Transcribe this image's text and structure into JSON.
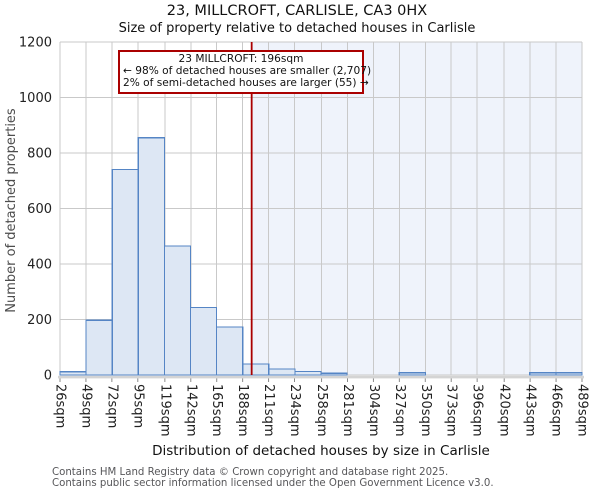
{
  "page": {
    "title": "23, MILLCROFT, CARLISLE, CA3 0HX",
    "subtitle": "Size of property relative to detached houses in Carlisle"
  },
  "annotation": {
    "line1": "23 MILLCROFT: 196sqm",
    "line2": "← 98% of detached houses are smaller (2,707)",
    "line3": "2% of semi-detached houses are larger (55) →"
  },
  "footer": {
    "line1": "Contains HM Land Registry data © Crown copyright and database right 2025.",
    "line2": "Contains public sector information licensed under the Open Government Licence v3.0."
  },
  "chart_data": {
    "type": "bar",
    "title": "23, MILLCROFT, CARLISLE, CA3 0HX",
    "subtitle": "Size of property relative to detached houses in Carlisle",
    "xlabel": "Distribution of detached houses by size in Carlisle",
    "ylabel": "Number of detached properties",
    "ylim": [
      0,
      1200
    ],
    "yticks": [
      0,
      200,
      400,
      600,
      800,
      1000,
      1200
    ],
    "x_tick_labels": [
      "26sqm",
      "49sqm",
      "72sqm",
      "95sqm",
      "119sqm",
      "142sqm",
      "165sqm",
      "188sqm",
      "211sqm",
      "234sqm",
      "258sqm",
      "281sqm",
      "304sqm",
      "327sqm",
      "350sqm",
      "373sqm",
      "396sqm",
      "420sqm",
      "443sqm",
      "466sqm",
      "489sqm"
    ],
    "x_tick_values_sqm": [
      26,
      49,
      72,
      95,
      119,
      142,
      165,
      188,
      211,
      234,
      258,
      281,
      304,
      327,
      350,
      373,
      396,
      420,
      443,
      466,
      489
    ],
    "values": [
      12,
      197,
      740,
      855,
      465,
      243,
      173,
      40,
      22,
      13,
      6,
      0,
      0,
      8,
      0,
      0,
      0,
      0,
      8,
      8
    ],
    "marker_sqm": 196,
    "grid": true,
    "legend": "none",
    "colors": {
      "bar_fill": "#dde7f4",
      "bar_edge": "#5585c5",
      "marker_line": "#aa0000",
      "shade_right_of_marker": "#eff3fb",
      "grid_line": "#c9c9c9",
      "axis_band": "#d4d4d4",
      "tick_mark": "#8a8a8a",
      "tick_text": "#222222"
    }
  }
}
